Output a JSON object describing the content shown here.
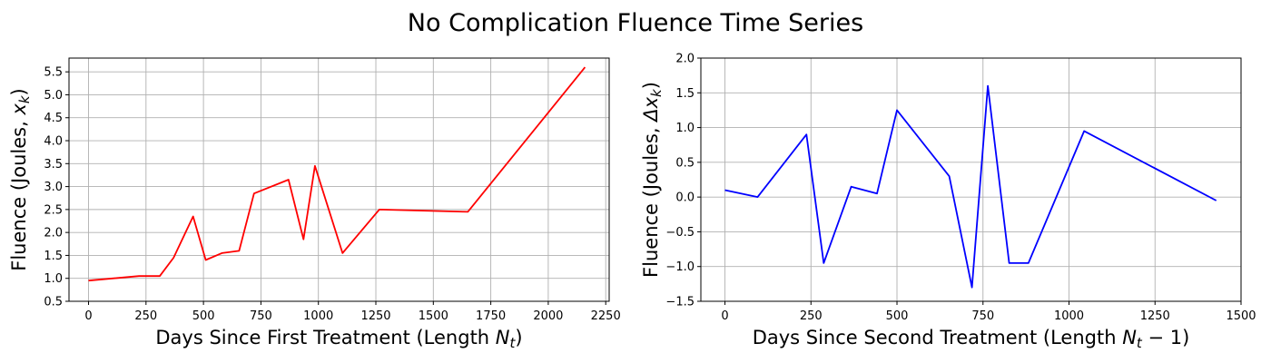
{
  "figure": {
    "title": "No Complication Fluence Time Series"
  },
  "chart_data": [
    {
      "type": "line",
      "xlabel_main": "Days Since First Treatment (Length ",
      "xlabel_math": "N",
      "xlabel_sub": "t",
      "xlabel_close": ")",
      "ylabel_main": "Fluence (Joules, ",
      "ylabel_math": "x",
      "ylabel_sub": "k",
      "ylabel_close": ")",
      "xlim": [
        -85,
        2265
      ],
      "ylim": [
        0.5,
        5.8
      ],
      "xticks": [
        0,
        250,
        500,
        750,
        1000,
        1250,
        1500,
        1750,
        2000,
        2250
      ],
      "xtick_labels": [
        "0",
        "250",
        "500",
        "750",
        "1000",
        "1250",
        "1500",
        "1750",
        "2000",
        "2250"
      ],
      "yticks": [
        0.5,
        1.0,
        1.5,
        2.0,
        2.5,
        3.0,
        3.5,
        4.0,
        4.5,
        5.0,
        5.5
      ],
      "ytick_labels": [
        "0.5",
        "1.0",
        "1.5",
        "2.0",
        "2.5",
        "3.0",
        "3.5",
        "4.0",
        "4.5",
        "5.0",
        "5.5"
      ],
      "grid": true,
      "series": [
        {
          "color": "#ff0000",
          "x": [
            0,
            220,
            310,
            370,
            455,
            510,
            580,
            655,
            720,
            870,
            935,
            985,
            1105,
            1265,
            1650,
            2160
          ],
          "y": [
            0.95,
            1.05,
            1.05,
            1.45,
            2.35,
            1.4,
            1.55,
            1.6,
            2.85,
            3.15,
            1.85,
            3.45,
            1.55,
            2.5,
            2.45,
            5.6
          ]
        }
      ]
    },
    {
      "type": "line",
      "xlabel_main": "Days Since Second Treatment (Length ",
      "xlabel_math": "N",
      "xlabel_sub": "t",
      "xlabel_close": " − 1)",
      "ylabel_main": "Fluence (Joules, ",
      "ylabel_math": "Δx",
      "ylabel_sub": "k",
      "ylabel_close": ")",
      "xlim": [
        -70,
        1500
      ],
      "ylim": [
        -1.5,
        2.0
      ],
      "xticks": [
        0,
        250,
        500,
        750,
        1000,
        1250,
        1500
      ],
      "xtick_labels": [
        "0",
        "250",
        "500",
        "750",
        "1000",
        "1250",
        "1500"
      ],
      "yticks": [
        -1.5,
        -1.0,
        -0.5,
        0.0,
        0.5,
        1.0,
        1.5,
        2.0
      ],
      "ytick_labels": [
        "−1.5",
        "−1.0",
        "−0.5",
        "0.0",
        "0.5",
        "1.0",
        "1.5",
        "2.0"
      ],
      "grid": true,
      "series": [
        {
          "color": "#0000ff",
          "x": [
            0,
            95,
            237,
            287,
            367,
            442,
            500,
            652,
            718,
            764,
            826,
            882,
            1044,
            1428
          ],
          "y": [
            0.1,
            0.0,
            0.9,
            -0.95,
            0.15,
            0.05,
            1.25,
            0.3,
            -1.3,
            1.6,
            -0.95,
            -0.95,
            0.95,
            -0.05
          ]
        }
      ]
    }
  ]
}
